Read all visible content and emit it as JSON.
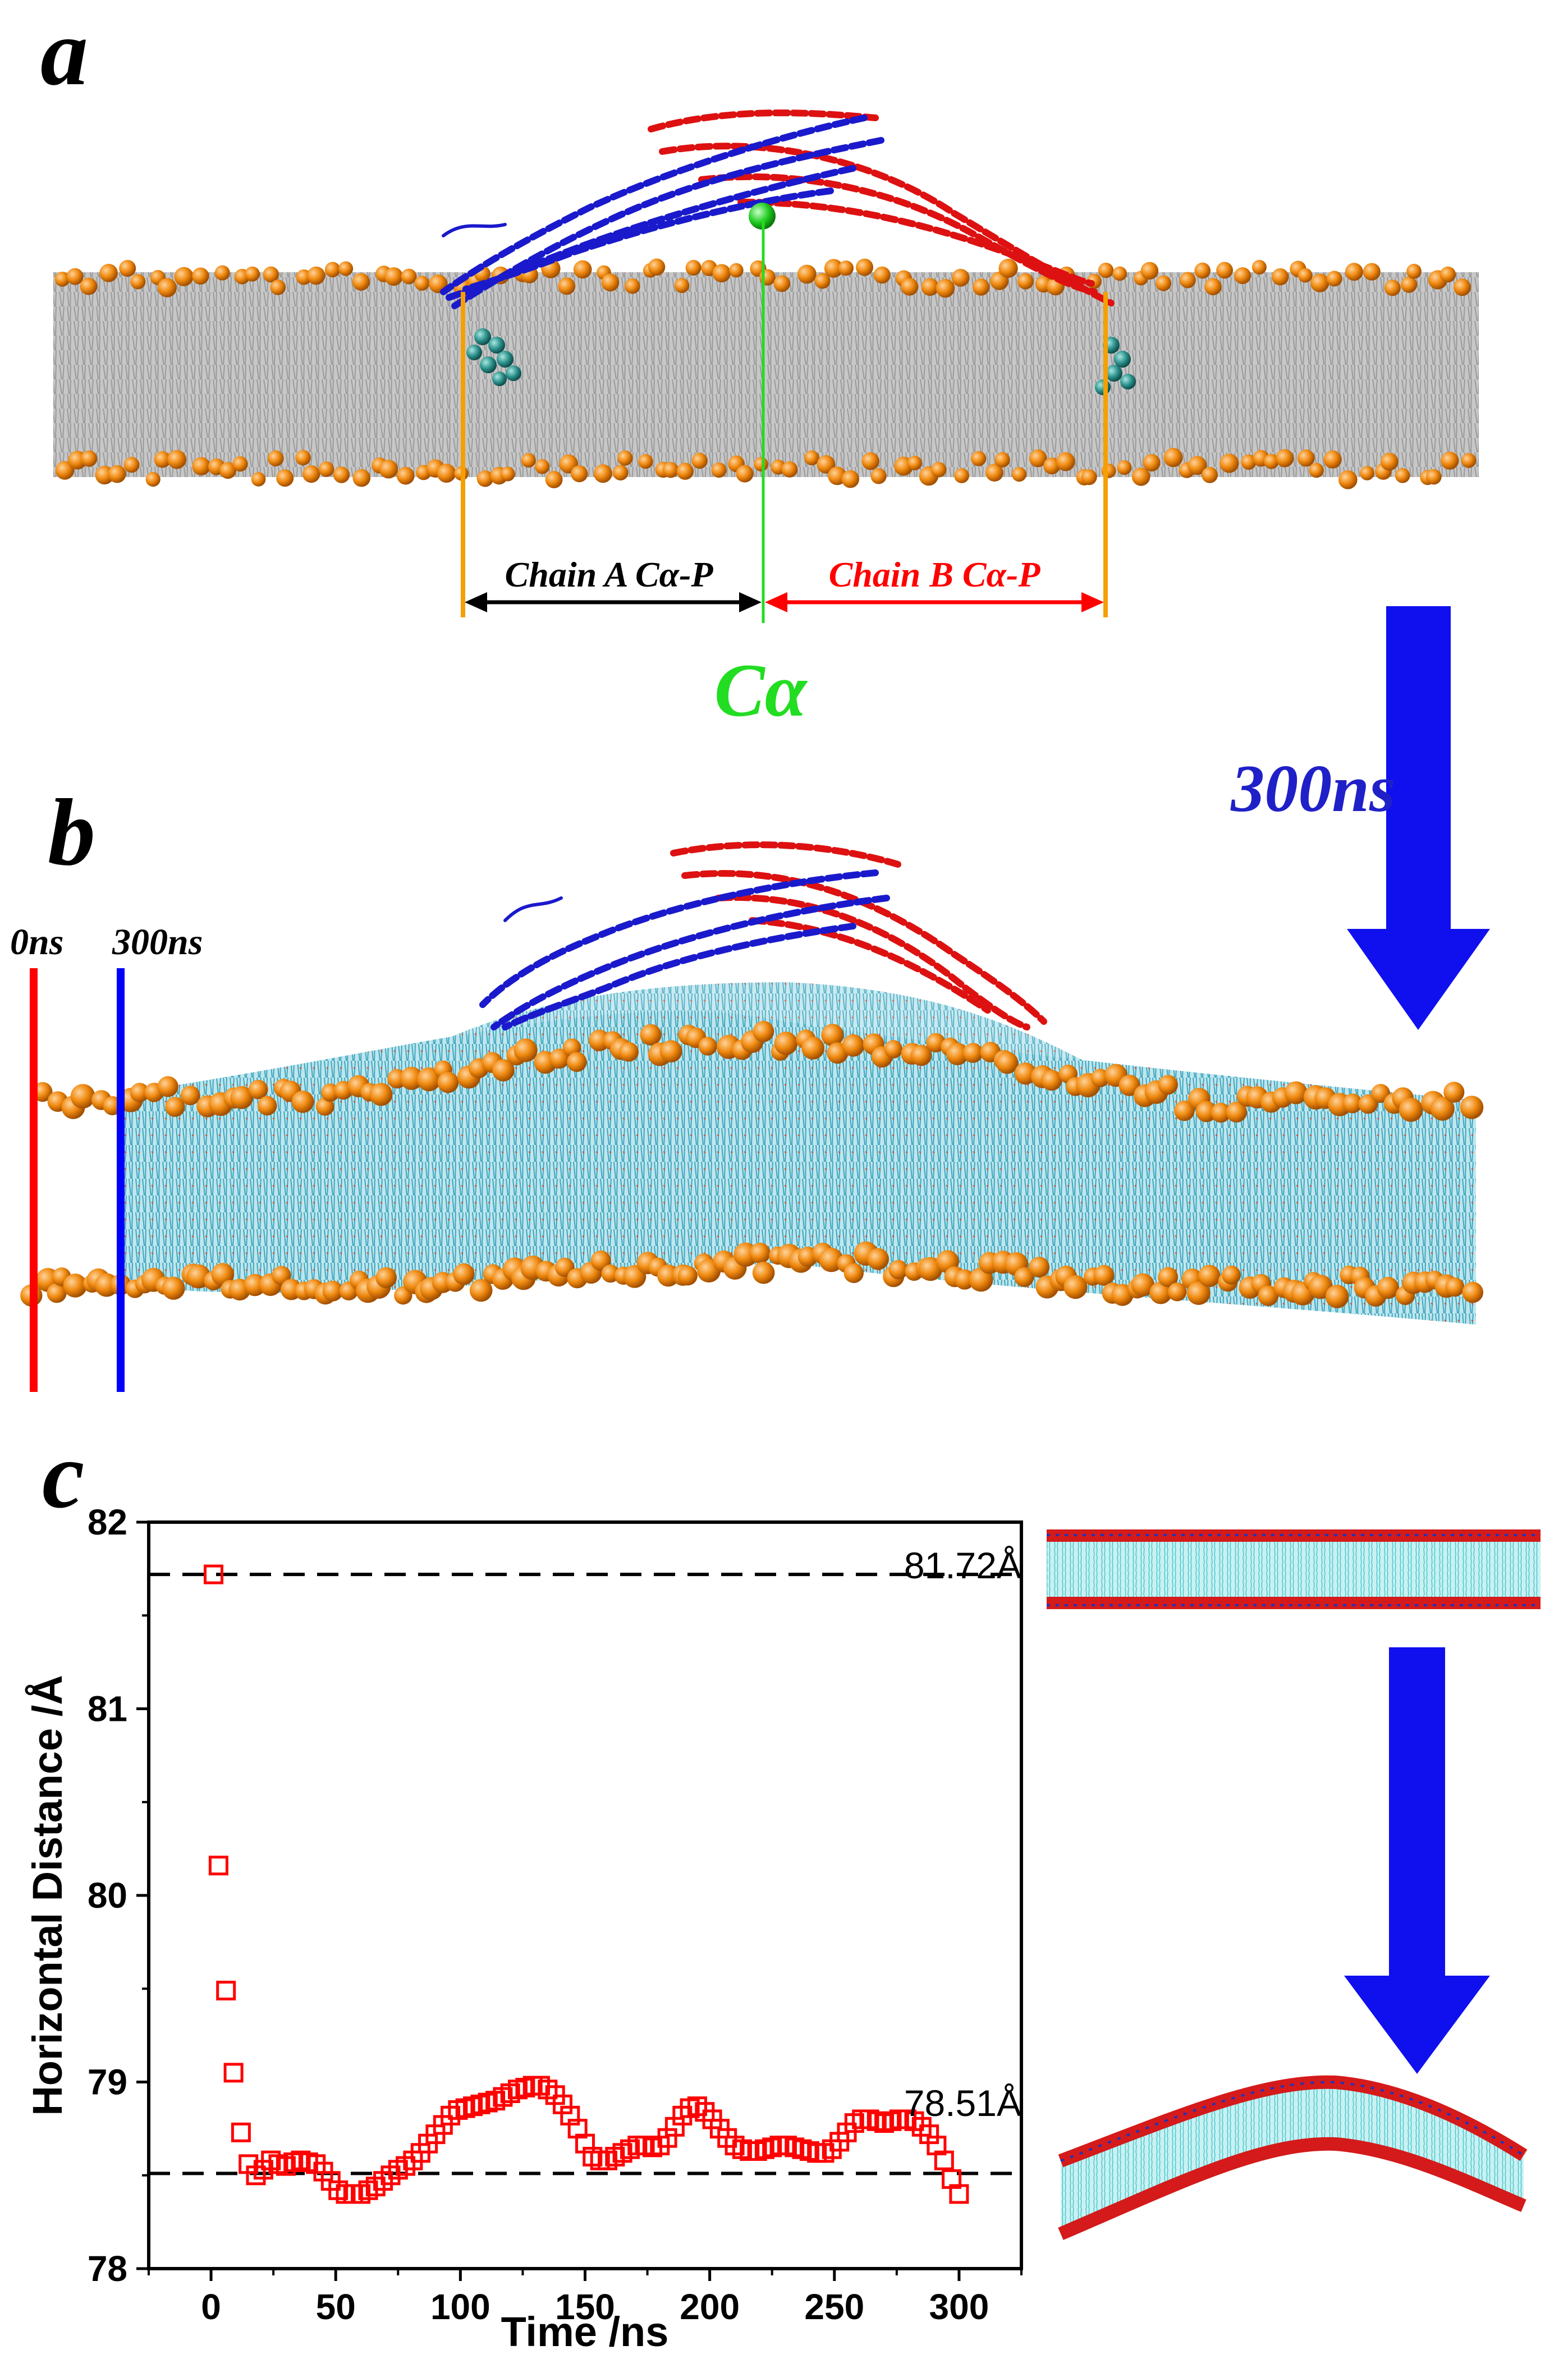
{
  "panels": {
    "a": {
      "letter": "a",
      "chain_a_label": "Chain A Cα-P",
      "chain_b_label": "Chain B Cα-P",
      "ca_label": "Cα"
    },
    "arrow_label": "300ns",
    "b": {
      "letter": "b",
      "line_0_label": "0ns",
      "line_300_label": "300ns"
    },
    "c": {
      "letter": "c"
    }
  },
  "colors": {
    "chain_a": "#1a1acc",
    "chain_b": "#dd1111",
    "ca_marker": "#22dd22",
    "phosphate": "#e07b00",
    "lipid_gray": "#b8b8b8",
    "lipid_cyan": "#4fb3c8",
    "arrow": "#1010ee",
    "marker": "#ff0000"
  },
  "chart_data": {
    "type": "scatter",
    "title": "",
    "xlabel": "Time /ns",
    "ylabel": "Horizontal Distance /Å",
    "xlim": [
      -25,
      325
    ],
    "ylim": [
      78,
      82
    ],
    "xticks": [
      0,
      50,
      100,
      150,
      200,
      250,
      300
    ],
    "yticks": [
      78,
      79,
      80,
      81,
      82
    ],
    "marker": "open-square",
    "reference_lines": [
      {
        "y": 81.72,
        "label": "81.72Å"
      },
      {
        "y": 78.51,
        "label": "78.51Å"
      }
    ],
    "x": [
      1,
      3,
      6,
      9,
      12,
      15,
      18,
      21,
      24,
      27,
      30,
      33,
      36,
      39,
      42,
      45,
      48,
      51,
      54,
      57,
      60,
      63,
      66,
      69,
      72,
      75,
      78,
      81,
      84,
      87,
      90,
      93,
      96,
      99,
      102,
      105,
      108,
      111,
      114,
      117,
      120,
      123,
      126,
      129,
      132,
      135,
      138,
      141,
      144,
      147,
      150,
      153,
      156,
      159,
      162,
      165,
      168,
      171,
      174,
      177,
      180,
      183,
      186,
      189,
      192,
      195,
      198,
      201,
      204,
      207,
      210,
      213,
      216,
      219,
      222,
      225,
      228,
      231,
      234,
      237,
      240,
      243,
      246,
      249,
      252,
      255,
      258,
      261,
      264,
      267,
      270,
      273,
      276,
      279,
      282,
      285,
      288,
      291,
      294,
      297,
      300
    ],
    "y": [
      81.72,
      80.16,
      79.49,
      79.05,
      78.73,
      78.56,
      78.5,
      78.53,
      78.58,
      78.56,
      78.55,
      78.57,
      78.58,
      78.57,
      78.56,
      78.52,
      78.47,
      78.42,
      78.4,
      78.4,
      78.4,
      78.42,
      78.44,
      78.47,
      78.5,
      78.53,
      78.55,
      78.58,
      78.62,
      78.67,
      78.72,
      78.77,
      78.82,
      78.85,
      78.86,
      78.87,
      78.88,
      78.89,
      78.9,
      78.92,
      78.94,
      78.96,
      78.97,
      78.98,
      78.98,
      78.96,
      78.93,
      78.88,
      78.82,
      78.75,
      78.67,
      78.6,
      78.58,
      78.58,
      78.6,
      78.62,
      78.64,
      78.66,
      78.66,
      78.65,
      78.66,
      78.7,
      78.76,
      78.82,
      78.86,
      78.87,
      78.84,
      78.8,
      78.75,
      78.7,
      78.66,
      78.64,
      78.63,
      78.63,
      78.64,
      78.65,
      78.66,
      78.66,
      78.65,
      78.64,
      78.63,
      78.62,
      78.62,
      78.64,
      78.68,
      78.73,
      78.78,
      78.8,
      78.8,
      78.79,
      78.78,
      78.79,
      78.8,
      78.8,
      78.79,
      78.76,
      78.72,
      78.66,
      78.58,
      78.48,
      78.4
    ]
  }
}
